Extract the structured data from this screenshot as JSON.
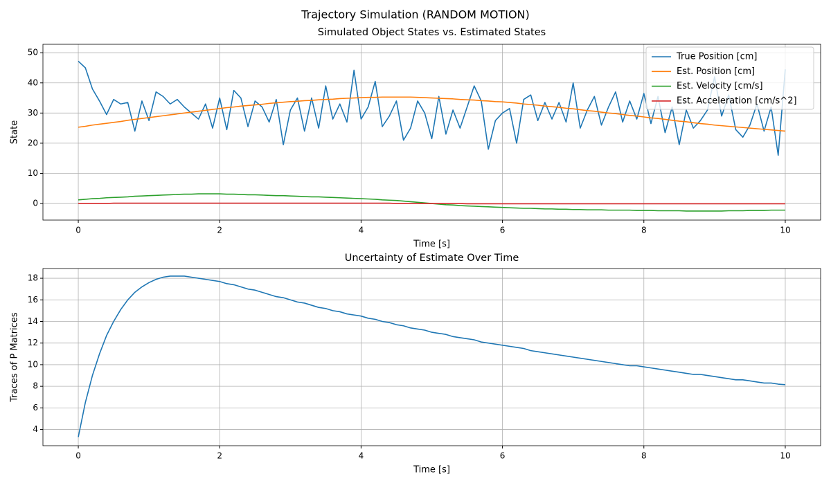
{
  "title": "Trajectory Simulation (RANDOM MOTION)",
  "chart_data": [
    {
      "type": "line",
      "title": "Simulated Object States vs. Estimated States",
      "x_label": "Time [s]",
      "y_label": "State",
      "x": [
        0,
        0.1,
        0.2,
        0.3,
        0.4,
        0.5,
        0.6,
        0.7,
        0.8,
        0.9,
        1,
        1.1,
        1.2,
        1.3,
        1.4,
        1.5,
        1.6,
        1.7,
        1.8,
        1.9,
        2,
        2.1,
        2.2,
        2.3,
        2.4,
        2.5,
        2.6,
        2.7,
        2.8,
        2.9,
        3,
        3.1,
        3.2,
        3.3,
        3.4,
        3.5,
        3.6,
        3.7,
        3.8,
        3.9,
        4,
        4.1,
        4.2,
        4.3,
        4.4,
        4.5,
        4.6,
        4.7,
        4.8,
        4.9,
        5,
        5.1,
        5.2,
        5.3,
        5.4,
        5.5,
        5.6,
        5.7,
        5.8,
        5.9,
        6,
        6.1,
        6.2,
        6.3,
        6.4,
        6.5,
        6.6,
        6.7,
        6.8,
        6.9,
        7,
        7.1,
        7.2,
        7.3,
        7.4,
        7.5,
        7.6,
        7.7,
        7.8,
        7.9,
        8,
        8.1,
        8.2,
        8.3,
        8.4,
        8.5,
        8.6,
        8.7,
        8.8,
        8.9,
        9,
        9.1,
        9.2,
        9.3,
        9.4,
        9.5,
        9.6,
        9.7,
        9.8,
        9.9,
        10
      ],
      "series": [
        {
          "name": "True Position [cm]",
          "color": "#1f77b4",
          "values": [
            47.2,
            45,
            38,
            34,
            29.5,
            34.5,
            33,
            33.5,
            24,
            34,
            27.5,
            37,
            35.5,
            33,
            34.5,
            32,
            30,
            28,
            33,
            25,
            35,
            24.5,
            37.5,
            35,
            25.5,
            34,
            32,
            27,
            34.5,
            19.5,
            31,
            35,
            24,
            35,
            25,
            39,
            28,
            33,
            27,
            44.2,
            28,
            32,
            40.5,
            25.5,
            29,
            34,
            21,
            25,
            34,
            30,
            21.5,
            35.5,
            23,
            31,
            25,
            32,
            39,
            34,
            18,
            27.5,
            30,
            31.5,
            20,
            34.5,
            36,
            27.5,
            33.5,
            28,
            33.5,
            27,
            40,
            25,
            31,
            35.5,
            26,
            32,
            37,
            27,
            34,
            28,
            36.5,
            26.5,
            35.5,
            23.5,
            32,
            19.5,
            31,
            25,
            27.5,
            31,
            42,
            29,
            36,
            24.5,
            22,
            26,
            33,
            24,
            32,
            16,
            44.5
          ]
        },
        {
          "name": "Est. Position [cm]",
          "color": "#ff7f0e",
          "values": [
            25.3,
            25.6,
            26.0,
            26.3,
            26.6,
            26.9,
            27.2,
            27.6,
            27.9,
            28.2,
            28.5,
            28.8,
            29.1,
            29.4,
            29.7,
            30.0,
            30.3,
            30.6,
            30.9,
            31.2,
            31.5,
            31.8,
            32.0,
            32.3,
            32.5,
            32.7,
            32.9,
            33.2,
            33.4,
            33.6,
            33.8,
            33.9,
            34.1,
            34.2,
            34.4,
            34.5,
            34.6,
            34.8,
            34.9,
            35.0,
            35.1,
            35.2,
            35.2,
            35.3,
            35.3,
            35.3,
            35.3,
            35.3,
            35.2,
            35.1,
            35.0,
            34.9,
            34.8,
            34.7,
            34.5,
            34.4,
            34.3,
            34.1,
            34.0,
            33.8,
            33.7,
            33.5,
            33.3,
            33.0,
            32.8,
            32.6,
            32.3,
            32.1,
            31.9,
            31.6,
            31.4,
            31.1,
            30.8,
            30.6,
            30.3,
            30.0,
            29.8,
            29.5,
            29.2,
            29.0,
            28.7,
            28.4,
            28.2,
            27.9,
            27.6,
            27.3,
            27.1,
            26.8,
            26.5,
            26.3,
            26.0,
            25.8,
            25.6,
            25.4,
            25.2,
            25.0,
            24.8,
            24.6,
            24.4,
            24.2,
            24.0
          ]
        },
        {
          "name": "Est. Velocity [cm/s]",
          "color": "#2ca02c",
          "values": [
            1.2,
            1.4,
            1.6,
            1.7,
            1.9,
            2.0,
            2.1,
            2.2,
            2.4,
            2.5,
            2.6,
            2.7,
            2.8,
            2.9,
            3.0,
            3.1,
            3.1,
            3.2,
            3.2,
            3.2,
            3.2,
            3.1,
            3.1,
            3.0,
            2.9,
            2.9,
            2.8,
            2.7,
            2.6,
            2.6,
            2.5,
            2.4,
            2.3,
            2.2,
            2.2,
            2.1,
            2.0,
            1.9,
            1.8,
            1.7,
            1.6,
            1.5,
            1.4,
            1.2,
            1.1,
            1.0,
            0.8,
            0.6,
            0.4,
            0.2,
            0.0,
            -0.2,
            -0.4,
            -0.5,
            -0.7,
            -0.8,
            -0.9,
            -1.0,
            -1.1,
            -1.2,
            -1.3,
            -1.4,
            -1.5,
            -1.6,
            -1.6,
            -1.7,
            -1.8,
            -1.8,
            -1.9,
            -1.9,
            -2.0,
            -2.0,
            -2.1,
            -2.1,
            -2.1,
            -2.2,
            -2.2,
            -2.2,
            -2.2,
            -2.3,
            -2.3,
            -2.3,
            -2.4,
            -2.4,
            -2.4,
            -2.4,
            -2.5,
            -2.5,
            -2.5,
            -2.5,
            -2.5,
            -2.5,
            -2.4,
            -2.4,
            -2.4,
            -2.3,
            -2.3,
            -2.3,
            -2.2,
            -2.2,
            -2.2
          ]
        },
        {
          "name": "Est. Acceleration [cm/s^2]",
          "color": "#d62728",
          "values": [
            0.0,
            0.0,
            0.0,
            0.0,
            0.0,
            0.1,
            0.1,
            0.1,
            0.1,
            0.1,
            0.1,
            0.1,
            0.1,
            0.1,
            0.1,
            0.1,
            0.1,
            0.1,
            0.1,
            0.1,
            0.1,
            0.1,
            0.1,
            0.1,
            0.1,
            0.1,
            0.1,
            0.1,
            0.1,
            0.1,
            0.1,
            0.1,
            0.1,
            0.1,
            0.1,
            0.1,
            0.1,
            0.1,
            0.1,
            0.1,
            0.1,
            0.1,
            0.1,
            0.1,
            0.1,
            0.0,
            0.0,
            0.0,
            0.0,
            0.0,
            0.0,
            0.0,
            0.0,
            0.0,
            0.0,
            -0.1,
            -0.1,
            -0.1,
            -0.1,
            -0.1,
            -0.1,
            -0.1,
            -0.1,
            -0.1,
            -0.1,
            -0.1,
            -0.1,
            -0.1,
            -0.1,
            -0.1,
            -0.1,
            -0.1,
            -0.1,
            -0.1,
            -0.1,
            -0.1,
            -0.1,
            -0.1,
            -0.1,
            -0.1,
            -0.1,
            -0.1,
            -0.1,
            -0.1,
            -0.1,
            -0.1,
            -0.1,
            -0.1,
            -0.1,
            -0.1,
            -0.1,
            -0.1,
            -0.1,
            -0.1,
            -0.1,
            -0.1,
            -0.1,
            -0.1,
            -0.1,
            -0.1,
            -0.1
          ]
        }
      ],
      "xlim": [
        -0.5,
        10.5
      ],
      "xticks": [
        0,
        2,
        4,
        6,
        8,
        10
      ],
      "ylim": [
        -5.5,
        52.8
      ],
      "yticks": [
        0,
        10,
        20,
        30,
        40,
        50
      ],
      "grid": true,
      "legend": "upper right"
    },
    {
      "type": "line",
      "title": "Uncertainty of Estimate Over Time",
      "x_label": "Time [s]",
      "y_label": "Traces of P Matrices",
      "x": [
        0,
        0.1,
        0.2,
        0.3,
        0.4,
        0.5,
        0.6,
        0.7,
        0.8,
        0.9,
        1,
        1.1,
        1.2,
        1.3,
        1.4,
        1.5,
        1.6,
        1.7,
        1.8,
        1.9,
        2,
        2.1,
        2.2,
        2.3,
        2.4,
        2.5,
        2.6,
        2.7,
        2.8,
        2.9,
        3,
        3.1,
        3.2,
        3.3,
        3.4,
        3.5,
        3.6,
        3.7,
        3.8,
        3.9,
        4,
        4.1,
        4.2,
        4.3,
        4.4,
        4.5,
        4.6,
        4.7,
        4.8,
        4.9,
        5,
        5.1,
        5.2,
        5.3,
        5.4,
        5.5,
        5.6,
        5.7,
        5.8,
        5.9,
        6,
        6.1,
        6.2,
        6.3,
        6.4,
        6.5,
        6.6,
        6.7,
        6.8,
        6.9,
        7,
        7.1,
        7.2,
        7.3,
        7.4,
        7.5,
        7.6,
        7.7,
        7.8,
        7.9,
        8,
        8.1,
        8.2,
        8.3,
        8.4,
        8.5,
        8.6,
        8.7,
        8.8,
        8.9,
        9,
        9.1,
        9.2,
        9.3,
        9.4,
        9.5,
        9.6,
        9.7,
        9.8,
        9.9,
        10
      ],
      "series": [
        {
          "color": "#1f77b4",
          "values": [
            3.3,
            6.5,
            9.0,
            11.0,
            12.7,
            14.0,
            15.1,
            16.0,
            16.7,
            17.2,
            17.6,
            17.9,
            18.1,
            18.2,
            18.2,
            18.2,
            18.1,
            18.0,
            17.9,
            17.8,
            17.7,
            17.5,
            17.4,
            17.2,
            17.0,
            16.9,
            16.7,
            16.5,
            16.3,
            16.2,
            16.0,
            15.8,
            15.7,
            15.5,
            15.3,
            15.2,
            15.0,
            14.9,
            14.7,
            14.6,
            14.5,
            14.3,
            14.2,
            14.0,
            13.9,
            13.7,
            13.6,
            13.4,
            13.3,
            13.2,
            13.0,
            12.9,
            12.8,
            12.6,
            12.5,
            12.4,
            12.3,
            12.1,
            12.0,
            11.9,
            11.8,
            11.7,
            11.6,
            11.5,
            11.3,
            11.2,
            11.1,
            11.0,
            10.9,
            10.8,
            10.7,
            10.6,
            10.5,
            10.4,
            10.3,
            10.2,
            10.1,
            10.0,
            9.9,
            9.9,
            9.8,
            9.7,
            9.6,
            9.5,
            9.4,
            9.3,
            9.2,
            9.1,
            9.1,
            9.0,
            8.9,
            8.8,
            8.7,
            8.6,
            8.6,
            8.5,
            8.4,
            8.3,
            8.3,
            8.2,
            8.15
          ]
        }
      ],
      "xlim": [
        -0.5,
        10.5
      ],
      "xticks": [
        0,
        2,
        4,
        6,
        8,
        10
      ],
      "ylim": [
        2.5,
        18.9
      ],
      "yticks": [
        4,
        6,
        8,
        10,
        12,
        14,
        16,
        18
      ],
      "grid": true
    }
  ]
}
